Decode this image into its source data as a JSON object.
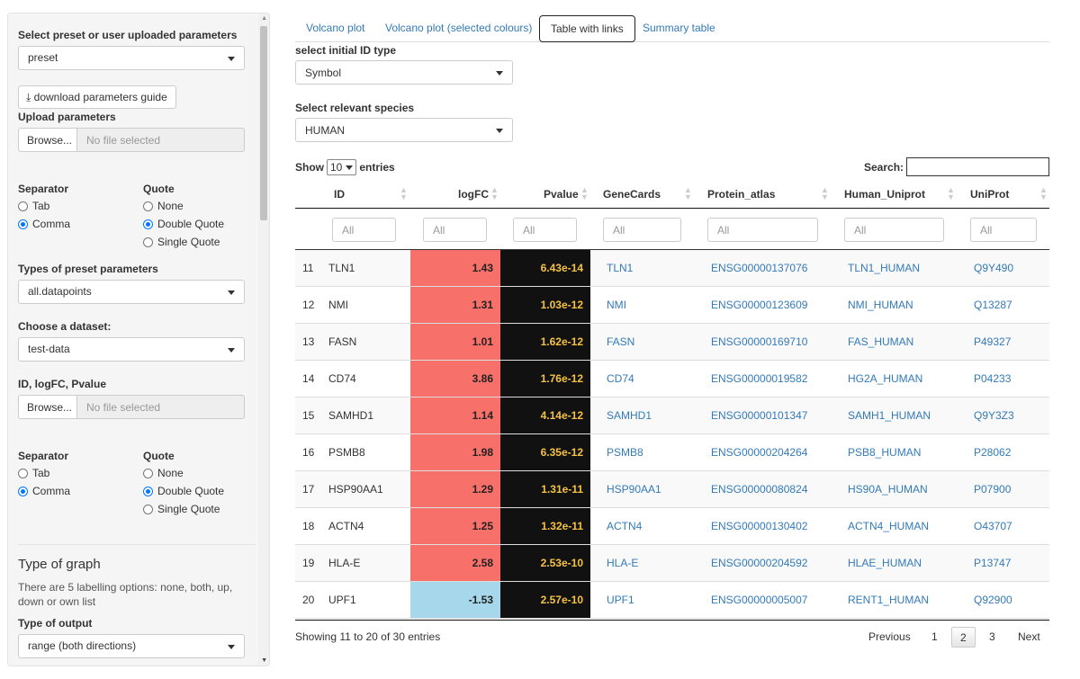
{
  "sidebar": {
    "preset_label": "Select preset or user uploaded parameters",
    "preset_value": "preset",
    "download_label": "download parameters guide",
    "upload_label": "Upload parameters",
    "browse_label": "Browse...",
    "no_file": "No file selected",
    "separator_label": "Separator",
    "quote_label": "Quote",
    "sep_tab": "Tab",
    "sep_comma": "Comma",
    "quote_none": "None",
    "quote_double": "Double Quote",
    "quote_single": "Single Quote",
    "types_label": "Types of preset parameters",
    "types_value": "all.datapoints",
    "dataset_label": "Choose a dataset:",
    "dataset_value": "test-data",
    "idfc_label": "ID, logFC, Pvalue",
    "graph_heading": "Type of graph",
    "graph_help": "There are 5 labelling options: none, both, up, down or own list",
    "output_label": "Type of output",
    "output_value": "range (both directions)"
  },
  "tabs": [
    "Volcano plot",
    "Volcano plot (selected colours)",
    "Table with links",
    "Summary table"
  ],
  "active_tab": "Table with links",
  "main": {
    "id_type_label": "select initial ID type",
    "id_type_value": "Symbol",
    "species_label": "Select relevant species",
    "species_value": "HUMAN",
    "show_label": "Show",
    "entries_label": "entries",
    "length_value": "10",
    "search_label": "Search:",
    "filter_placeholder": "All"
  },
  "table": {
    "columns": [
      "ID",
      "logFC",
      "Pvalue",
      "GeneCards",
      "Protein_atlas",
      "Human_Uniprot",
      "UniProt"
    ],
    "rows": [
      {
        "idx": "11",
        "id": "TLN1",
        "logfc": "1.43",
        "pvalue": "6.43e-14",
        "genecards": "TLN1",
        "atlas": "ENSG00000137076",
        "human_uniprot": "TLN1_HUMAN",
        "uniprot": "Q9Y490"
      },
      {
        "idx": "12",
        "id": "NMI",
        "logfc": "1.31",
        "pvalue": "1.03e-12",
        "genecards": "NMI",
        "atlas": "ENSG00000123609",
        "human_uniprot": "NMI_HUMAN",
        "uniprot": "Q13287"
      },
      {
        "idx": "13",
        "id": "FASN",
        "logfc": "1.01",
        "pvalue": "1.62e-12",
        "genecards": "FASN",
        "atlas": "ENSG00000169710",
        "human_uniprot": "FAS_HUMAN",
        "uniprot": "P49327"
      },
      {
        "idx": "14",
        "id": "CD74",
        "logfc": "3.86",
        "pvalue": "1.76e-12",
        "genecards": "CD74",
        "atlas": "ENSG00000019582",
        "human_uniprot": "HG2A_HUMAN",
        "uniprot": "P04233"
      },
      {
        "idx": "15",
        "id": "SAMHD1",
        "logfc": "1.14",
        "pvalue": "4.14e-12",
        "genecards": "SAMHD1",
        "atlas": "ENSG00000101347",
        "human_uniprot": "SAMH1_HUMAN",
        "uniprot": "Q9Y3Z3"
      },
      {
        "idx": "16",
        "id": "PSMB8",
        "logfc": "1.98",
        "pvalue": "6.35e-12",
        "genecards": "PSMB8",
        "atlas": "ENSG00000204264",
        "human_uniprot": "PSB8_HUMAN",
        "uniprot": "P28062"
      },
      {
        "idx": "17",
        "id": "HSP90AA1",
        "logfc": "1.29",
        "pvalue": "1.31e-11",
        "genecards": "HSP90AA1",
        "atlas": "ENSG00000080824",
        "human_uniprot": "HS90A_HUMAN",
        "uniprot": "P07900"
      },
      {
        "idx": "18",
        "id": "ACTN4",
        "logfc": "1.25",
        "pvalue": "1.32e-11",
        "genecards": "ACTN4",
        "atlas": "ENSG00000130402",
        "human_uniprot": "ACTN4_HUMAN",
        "uniprot": "O43707"
      },
      {
        "idx": "19",
        "id": "HLA-E",
        "logfc": "2.58",
        "pvalue": "2.53e-10",
        "genecards": "HLA-E",
        "atlas": "ENSG00000204592",
        "human_uniprot": "HLAE_HUMAN",
        "uniprot": "P13747"
      },
      {
        "idx": "20",
        "id": "UPF1",
        "logfc": "-1.53",
        "pvalue": "2.57e-10",
        "genecards": "UPF1",
        "atlas": "ENSG00000005007",
        "human_uniprot": "RENT1_HUMAN",
        "uniprot": "Q92900"
      }
    ],
    "info": "Showing 11 to 20 of 30 entries"
  },
  "pagination": {
    "previous": "Previous",
    "pages": [
      "1",
      "2",
      "3"
    ],
    "current": "2",
    "next": "Next"
  },
  "colors": {
    "up": "#f8706a",
    "down": "#a6d7ea",
    "pvalue_bg": "#111111",
    "pvalue_text": "#f5c242",
    "link": "#337ab7"
  }
}
